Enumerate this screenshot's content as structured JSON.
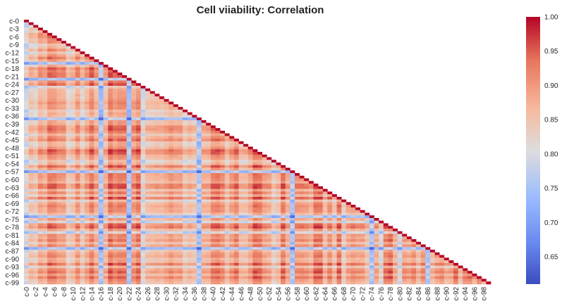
{
  "chart_data": {
    "type": "heatmap",
    "title": "Cell viiability: Correlation",
    "xlabel": "",
    "ylabel": "",
    "n": 100,
    "mask": "upper-triangle",
    "colormap": "coolwarm",
    "color_low": "#3b4cc0",
    "color_mid": "#dddddd",
    "color_high": "#b40426",
    "vmin": 0.61,
    "vmax": 1.0,
    "mean_correlation": 0.86,
    "weak_rows_and_columns": [
      "c-16",
      "c-22",
      "c-37",
      "c-57",
      "c-74",
      "c-86"
    ],
    "weak_correlation_min": 0.62,
    "x_tick_labels": [
      "c-0",
      "c-2",
      "c-4",
      "c-6",
      "c-8",
      "c-10",
      "c-12",
      "c-14",
      "c-16",
      "c-18",
      "c-20",
      "c-22",
      "c-24",
      "c-26",
      "c-28",
      "c-30",
      "c-32",
      "c-34",
      "c-36",
      "c-38",
      "c-40",
      "c-42",
      "c-44",
      "c-46",
      "c-48",
      "c-50",
      "c-52",
      "c-54",
      "c-56",
      "c-58",
      "c-60",
      "c-62",
      "c-64",
      "c-66",
      "c-68",
      "c-70",
      "c-72",
      "c-74",
      "c-76",
      "c-78",
      "c-80",
      "c-82",
      "c-84",
      "c-86",
      "c-88",
      "c-90",
      "c-92",
      "c-94",
      "c-96",
      "c-98"
    ],
    "y_tick_labels": [
      "c-0",
      "c-3",
      "c-6",
      "c-9",
      "c-12",
      "c-15",
      "c-18",
      "c-21",
      "c-24",
      "c-27",
      "c-30",
      "c-33",
      "c-36",
      "c-39",
      "c-42",
      "c-45",
      "c-48",
      "c-51",
      "c-54",
      "c-57",
      "c-60",
      "c-63",
      "c-66",
      "c-69",
      "c-72",
      "c-75",
      "c-78",
      "c-81",
      "c-84",
      "c-87",
      "c-90",
      "c-93",
      "c-96",
      "c-99"
    ],
    "colorbar_ticks": [
      "0.65",
      "0.70",
      "0.75",
      "0.80",
      "0.85",
      "0.90",
      "0.95",
      "1.00"
    ]
  }
}
